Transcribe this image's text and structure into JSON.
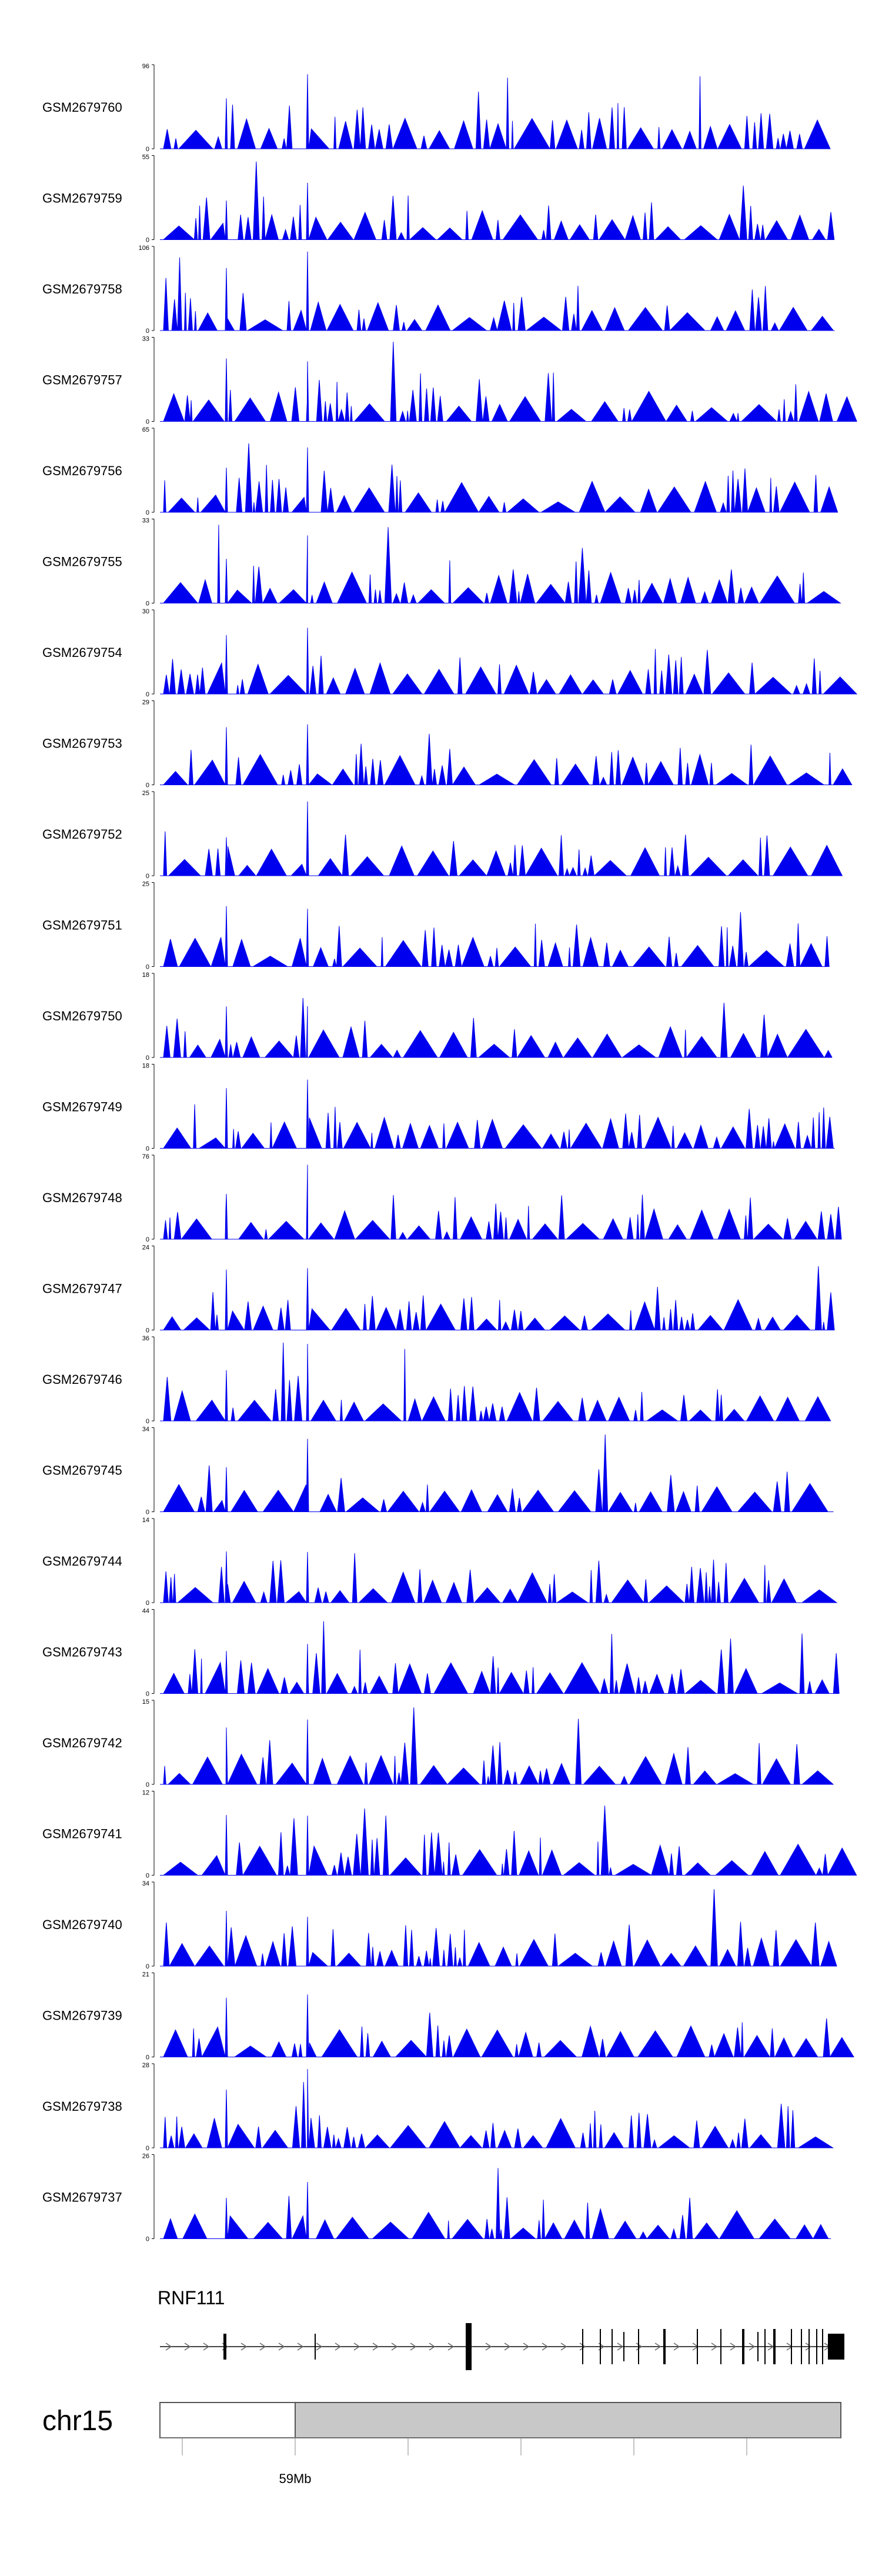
{
  "colors": {
    "signal": "#0000ee",
    "axis": "#000000",
    "gene": "#000000",
    "chrom_fill": "#c8c8c8",
    "chrom_stroke": "#555555"
  },
  "chart_data": {
    "type": "area",
    "tracks": [
      {
        "name": "GSM2679760",
        "ymax": "96",
        "ymin": "0",
        "max": 96,
        "seed": 60
      },
      {
        "name": "GSM2679759",
        "ymax": "55",
        "ymin": "0",
        "max": 55,
        "seed": 59
      },
      {
        "name": "GSM2679758",
        "ymax": "106",
        "ymin": "0",
        "max": 106,
        "seed": 58
      },
      {
        "name": "GSM2679757",
        "ymax": "33",
        "ymin": "0",
        "max": 33,
        "seed": 57
      },
      {
        "name": "GSM2679756",
        "ymax": "65",
        "ymin": "0",
        "max": 65,
        "seed": 56
      },
      {
        "name": "GSM2679755",
        "ymax": "33",
        "ymin": "0",
        "max": 33,
        "seed": 55
      },
      {
        "name": "GSM2679754",
        "ymax": "30",
        "ymin": "0",
        "max": 30,
        "seed": 54
      },
      {
        "name": "GSM2679753",
        "ymax": "29",
        "ymin": "0",
        "max": 29,
        "seed": 53
      },
      {
        "name": "GSM2679752",
        "ymax": "25",
        "ymin": "0",
        "max": 25,
        "seed": 52
      },
      {
        "name": "GSM2679751",
        "ymax": "25",
        "ymin": "0",
        "max": 25,
        "seed": 51
      },
      {
        "name": "GSM2679750",
        "ymax": "18",
        "ymin": "0",
        "max": 18,
        "seed": 50
      },
      {
        "name": "GSM2679749",
        "ymax": "18",
        "ymin": "0",
        "max": 18,
        "seed": 49
      },
      {
        "name": "GSM2679748",
        "ymax": "76",
        "ymin": "0",
        "max": 76,
        "seed": 48
      },
      {
        "name": "GSM2679747",
        "ymax": "24",
        "ymin": "0",
        "max": 24,
        "seed": 47
      },
      {
        "name": "GSM2679746",
        "ymax": "36",
        "ymin": "0",
        "max": 36,
        "seed": 46
      },
      {
        "name": "GSM2679745",
        "ymax": "34",
        "ymin": "0",
        "max": 34,
        "seed": 45
      },
      {
        "name": "GSM2679744",
        "ymax": "14",
        "ymin": "0",
        "max": 14,
        "seed": 44
      },
      {
        "name": "GSM2679743",
        "ymax": "44",
        "ymin": "0",
        "max": 44,
        "seed": 43
      },
      {
        "name": "GSM2679742",
        "ymax": "15",
        "ymin": "0",
        "max": 15,
        "seed": 42
      },
      {
        "name": "GSM2679741",
        "ymax": "12",
        "ymin": "0",
        "max": 12,
        "seed": 41
      },
      {
        "name": "GSM2679740",
        "ymax": "34",
        "ymin": "0",
        "max": 34,
        "seed": 40
      },
      {
        "name": "GSM2679739",
        "ymax": "21",
        "ymin": "0",
        "max": 21,
        "seed": 39
      },
      {
        "name": "GSM2679738",
        "ymax": "28",
        "ymin": "0",
        "max": 28,
        "seed": 38
      },
      {
        "name": "GSM2679737",
        "ymax": "26",
        "ymin": "0",
        "max": 26,
        "seed": 37
      }
    ],
    "gene": {
      "name": "RNF111",
      "strand": "+"
    },
    "chromosome": {
      "name": "chr15",
      "tick_label": "59Mb"
    }
  }
}
